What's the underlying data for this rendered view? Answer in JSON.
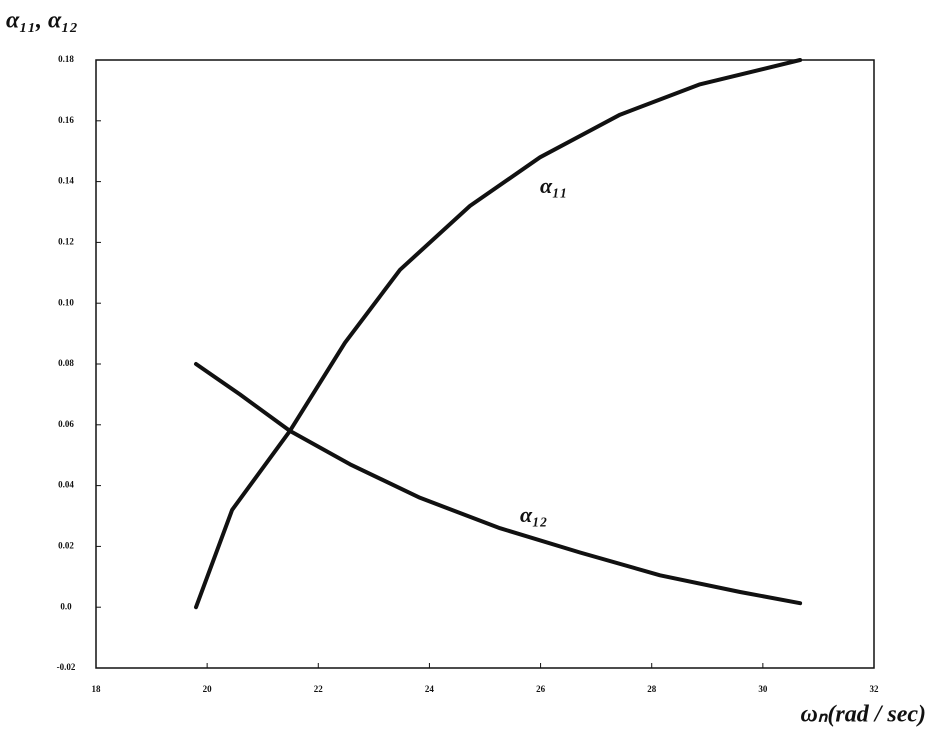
{
  "chart_data": {
    "type": "line",
    "y_label": "α₁₁, α₁₂",
    "x_label": "ωₙ(rad / sec)",
    "xlim": [
      18,
      32
    ],
    "xticks": [
      18,
      20,
      22,
      24,
      26,
      28,
      30,
      32
    ],
    "ylim": [
      -0.02,
      0.18
    ],
    "yticks": [
      -0.02,
      {
        "value": 0,
        "label": "0.0"
      },
      0.02,
      0.04,
      0.06,
      0.08,
      {
        "value": 0.1,
        "label": "0.10"
      },
      0.12,
      0.14,
      0.16,
      0.18
    ],
    "series": [
      {
        "name": "α₁₁",
        "color": "#111111",
        "x": [
          19.8,
          20.45,
          21.49,
          22.48,
          23.47,
          24.73,
          25.99,
          27.43,
          28.87,
          30.67
        ],
        "values": [
          0.0,
          0.032,
          0.058,
          0.087,
          0.111,
          0.132,
          0.148,
          0.162,
          0.172,
          0.18
        ]
      },
      {
        "name": "α₁₂",
        "color": "#111111",
        "x": [
          19.8,
          20.59,
          21.49,
          22.57,
          23.83,
          25.27,
          26.71,
          28.15,
          29.59,
          30.67
        ],
        "values": [
          0.08,
          0.07,
          0.058,
          0.047,
          0.036,
          0.026,
          0.018,
          0.0105,
          0.005,
          0.0013
        ]
      }
    ]
  }
}
